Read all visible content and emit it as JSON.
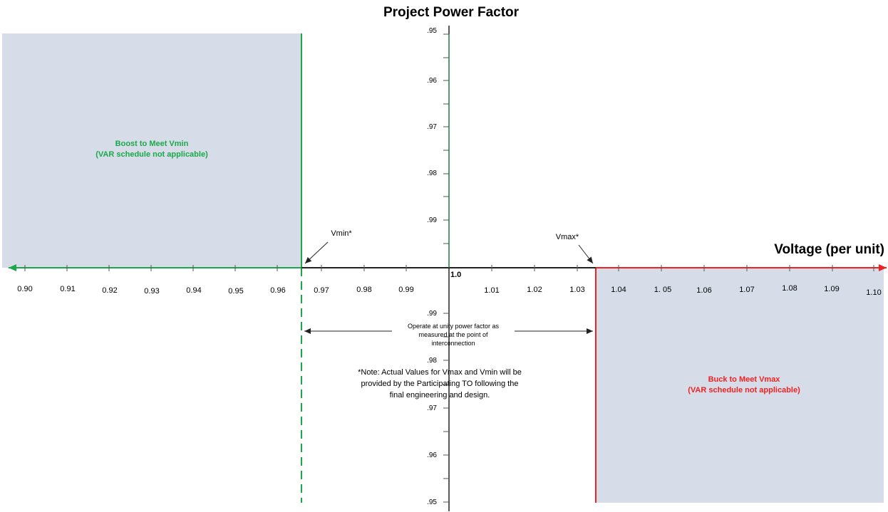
{
  "chart_data": {
    "type": "diagram",
    "title": "Project Power Factor",
    "xlabel": "Voltage (per unit)",
    "x_ticks_left": [
      "0.90",
      "0.91",
      "0.92",
      "0.93",
      "0.94",
      "0.95",
      "0.96",
      "0.97",
      "0.98",
      "0.99"
    ],
    "x_origin_label": "1.0",
    "x_ticks_right": [
      "1.01",
      "1.02",
      "1.03",
      "1.04",
      "1. 05",
      "1.06",
      "1.07",
      "1.08",
      "1.09",
      "1.10"
    ],
    "y_ticks_upper": [
      ".95",
      ".96",
      ".97",
      ".98",
      ".99"
    ],
    "y_ticks_lower": [
      ".99",
      ".98",
      ".97",
      ".96",
      ".95"
    ],
    "regions": {
      "boost": {
        "line1": "Boost to Meet Vmin",
        "line2": "(VAR schedule not applicable)",
        "color": "#1aa84a",
        "fill": "#d6dde8"
      },
      "buck": {
        "line1": "Buck to Meet Vmax",
        "line2": "(VAR schedule not applicable)",
        "color": "#ee2222",
        "fill": "#d6dde8"
      }
    },
    "markers": {
      "vmin": "Vmin*",
      "vmax": "Vmax*"
    },
    "unity_note": [
      "Operate at unity power factor as",
      "measured at the point of",
      "interconnection"
    ],
    "footnote": [
      "*Note: Actual Values for Vmax and Vmin will be",
      "provided by the Participating TO following the",
      "final engineering and design."
    ],
    "x_range": [
      0.9,
      1.1
    ],
    "y_range_upper": [
      1.0,
      0.95
    ],
    "y_range_lower": [
      1.0,
      0.95
    ]
  }
}
